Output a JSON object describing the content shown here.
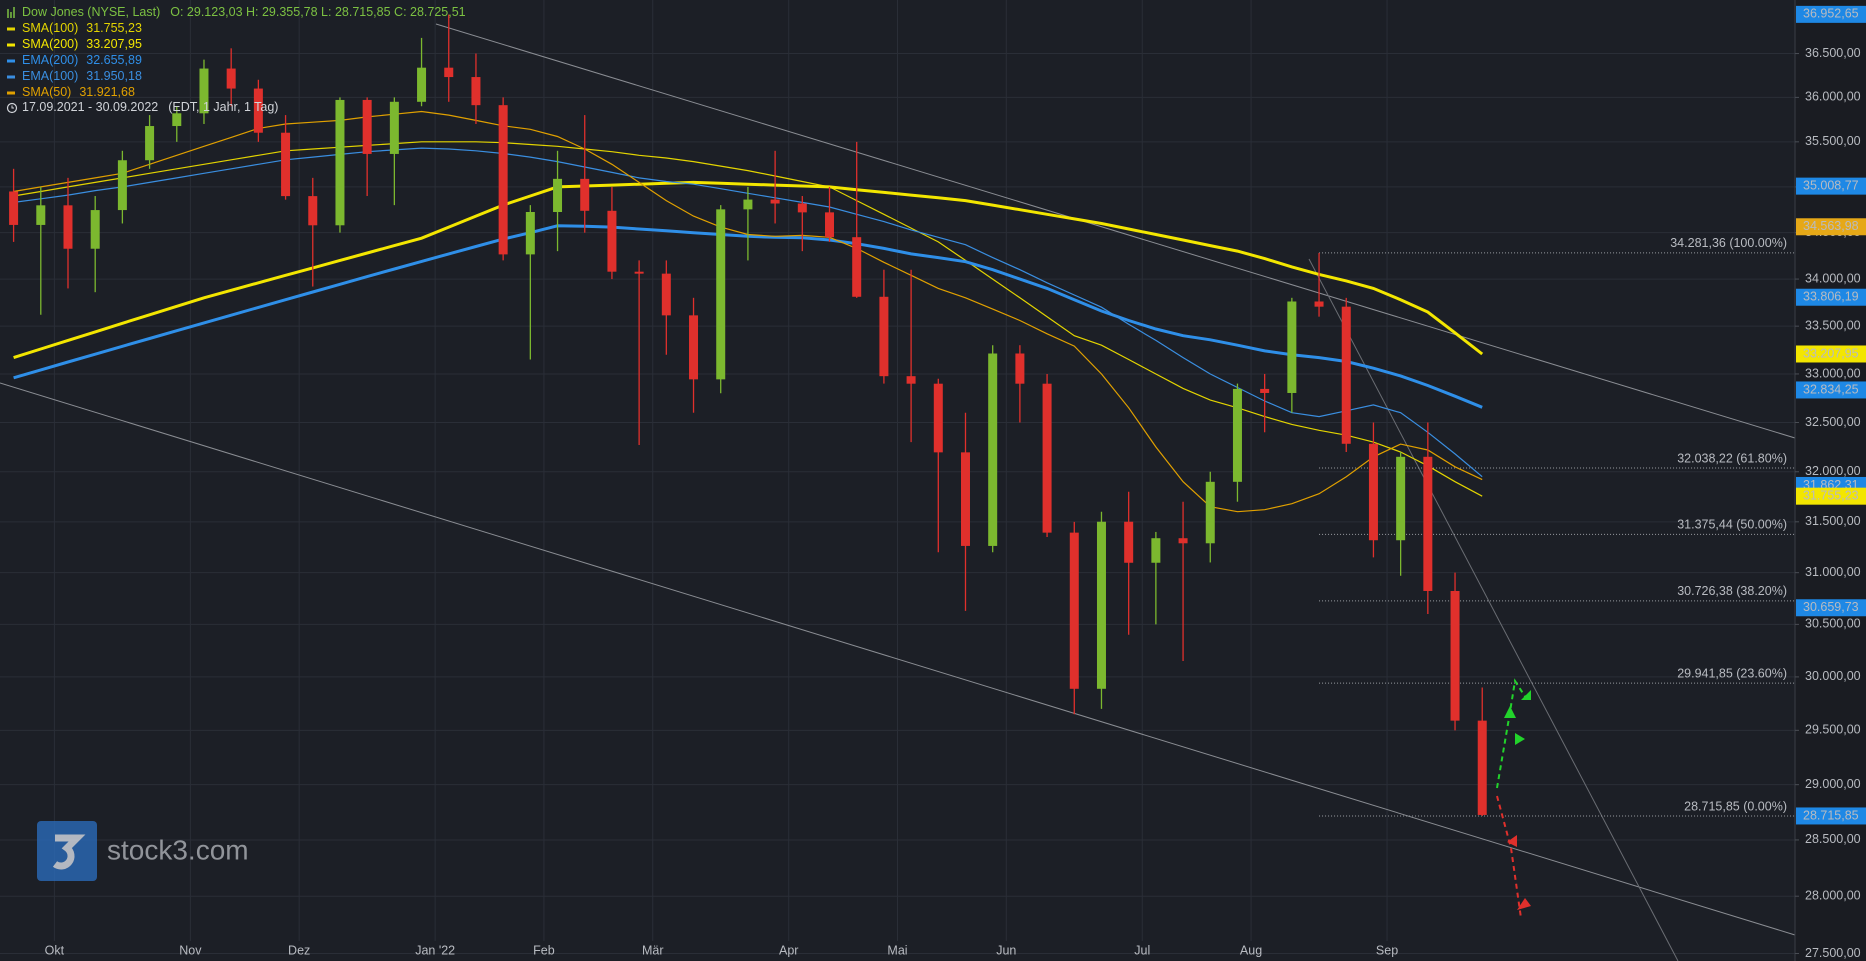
{
  "chart_data": {
    "type": "candlestick",
    "header": {
      "symbol": "Dow Jones (NYSE, Last)",
      "quote": "O: 29.123,03   H: 29.355,78   L: 28.715,85   C: 28.725,51",
      "period": "17.09.2021 - 30.09.2022",
      "period_note": "(EDT, 1 Jahr, 1 Tag)"
    },
    "watermark": "stock3.com",
    "categories": [
      null,
      null,
      "Okt",
      null,
      null,
      null,
      null,
      "Nov",
      null,
      null,
      null,
      "Dez",
      null,
      null,
      null,
      null,
      "Jan '22",
      null,
      null,
      null,
      "Feb",
      null,
      null,
      null,
      "Mär",
      null,
      null,
      null,
      null,
      "Apr",
      null,
      null,
      null,
      "Mai",
      null,
      null,
      null,
      "Jun",
      null,
      null,
      null,
      null,
      "Jul",
      null,
      null,
      null,
      "Aug",
      null,
      null,
      null,
      null,
      "Sep",
      null,
      null,
      null
    ],
    "open": [
      34950,
      34584,
      34798,
      34326,
      34746,
      35295,
      35677,
      35820,
      36328,
      36100,
      35602,
      34899,
      34580,
      35971,
      35365,
      35950,
      36338,
      36231,
      35912,
      34265,
      34725,
      35089,
      34738,
      34079,
      34058,
      33614,
      32944,
      34754,
      34861,
      34818,
      34721,
      34451,
      33811,
      32977,
      32899,
      32196,
      31262,
      33213,
      32899,
      31393,
      29888,
      31501,
      31097,
      31338,
      31288,
      31899,
      32845,
      32803,
      33761,
      33706,
      32283,
      31318,
      32151,
      30822,
      29590
    ],
    "high": [
      35200,
      35000,
      35100,
      34900,
      35400,
      35800,
      35900,
      36430,
      36560,
      36200,
      35800,
      35100,
      36000,
      36000,
      36000,
      36680,
      36950,
      36500,
      36000,
      34800,
      35400,
      35800,
      35000,
      34200,
      34200,
      33800,
      34800,
      35000,
      35400,
      34900,
      35000,
      35500,
      34100,
      34100,
      32950,
      32600,
      33300,
      33300,
      33000,
      31500,
      31600,
      31800,
      31400,
      31700,
      32000,
      32900,
      33000,
      33800,
      34281,
      33800,
      32500,
      32200,
      32500,
      31000,
      29900
    ],
    "low": [
      34400,
      33620,
      33900,
      33860,
      34600,
      35200,
      35500,
      35700,
      35900,
      35500,
      34860,
      33920,
      34500,
      34900,
      34800,
      35900,
      35950,
      35700,
      34200,
      33150,
      34300,
      34500,
      34000,
      32270,
      33200,
      32600,
      32800,
      34200,
      34600,
      34300,
      34400,
      33800,
      32900,
      32300,
      31200,
      30630,
      31200,
      32500,
      31350,
      29650,
      29700,
      30400,
      30500,
      30150,
      31100,
      31700,
      32400,
      32600,
      33600,
      32200,
      31150,
      30970,
      30600,
      29500,
      28715
    ],
    "close": [
      34584,
      34798,
      34326,
      34746,
      35295,
      35677,
      35820,
      36328,
      36100,
      35602,
      34899,
      34580,
      35971,
      35365,
      35950,
      36338,
      36231,
      35912,
      34265,
      34725,
      35089,
      34738,
      34079,
      34058,
      33614,
      32944,
      34754,
      34861,
      34818,
      34721,
      34451,
      33811,
      32977,
      32899,
      32196,
      31262,
      33213,
      32899,
      31393,
      29888,
      31501,
      31097,
      31338,
      31288,
      31899,
      32845,
      32803,
      33761,
      33706,
      32283,
      31318,
      32151,
      30822,
      29590,
      28725
    ],
    "up_color": "#7cb82f",
    "down_color": "#e0302c",
    "series": [
      {
        "name": "SMA(100)",
        "last_label": "31.755,23",
        "color": "#e3d400",
        "width": 1.2,
        "values": [
          34900,
          34950,
          35000,
          35050,
          35100,
          35150,
          35200,
          35250,
          35300,
          35350,
          35400,
          35420,
          35440,
          35460,
          35480,
          35500,
          35500,
          35500,
          35490,
          35470,
          35450,
          35420,
          35390,
          35350,
          35320,
          35280,
          35230,
          35180,
          35120,
          35060,
          35000,
          34850,
          34700,
          34550,
          34400,
          34200,
          34000,
          33800,
          33600,
          33400,
          33300,
          33150,
          33000,
          32850,
          32730,
          32650,
          32560,
          32480,
          32420,
          32370,
          32300,
          32200,
          32060,
          31900,
          31755
        ]
      },
      {
        "name": "SMA(200)",
        "last_label": "33.207,95",
        "color": "#f3e600",
        "width": 3,
        "values": [
          33170,
          33260,
          33350,
          33440,
          33530,
          33620,
          33710,
          33800,
          33880,
          33960,
          34040,
          34120,
          34200,
          34280,
          34360,
          34440,
          34560,
          34680,
          34800,
          34900,
          35000,
          35010,
          35020,
          35030,
          35040,
          35050,
          35040,
          35030,
          35020,
          35010,
          35000,
          34970,
          34940,
          34910,
          34880,
          34850,
          34800,
          34750,
          34700,
          34650,
          34600,
          34540,
          34480,
          34420,
          34360,
          34300,
          34220,
          34130,
          34050,
          33980,
          33900,
          33780,
          33650,
          33430,
          33208
        ]
      },
      {
        "name": "EMA(200)",
        "last_label": "32.655,89",
        "color": "#2f8fe8",
        "width": 3,
        "values": [
          32960,
          33042,
          33124,
          33206,
          33288,
          33370,
          33452,
          33534,
          33616,
          33698,
          33780,
          33862,
          33944,
          34026,
          34108,
          34190,
          34270,
          34350,
          34430,
          34500,
          34575,
          34570,
          34560,
          34540,
          34520,
          34500,
          34480,
          34460,
          34450,
          34444,
          34420,
          34380,
          34330,
          34270,
          34230,
          34186,
          34100,
          34000,
          33900,
          33780,
          33660,
          33560,
          33470,
          33400,
          33357,
          33300,
          33240,
          33200,
          33170,
          33130,
          33060,
          32980,
          32880,
          32770,
          32656
        ]
      },
      {
        "name": "EMA(100)",
        "last_label": "31.950,18",
        "color": "#3a8ee0",
        "width": 1.2,
        "values": [
          34830,
          34870,
          34910,
          34960,
          35000,
          35050,
          35100,
          35150,
          35200,
          35250,
          35300,
          35330,
          35360,
          35390,
          35410,
          35430,
          35420,
          35400,
          35370,
          35330,
          35280,
          35220,
          35160,
          35100,
          35060,
          35030,
          34980,
          34930,
          34880,
          34830,
          34780,
          34700,
          34620,
          34530,
          34450,
          34370,
          34230,
          34100,
          33960,
          33830,
          33700,
          33520,
          33350,
          33170,
          33000,
          32860,
          32720,
          32600,
          32560,
          32620,
          32680,
          32600,
          32400,
          32180,
          31950
        ]
      },
      {
        "name": "SMA(50)",
        "last_label": "31.921,68",
        "color": "#e0a000",
        "width": 1.2,
        "values": [
          34950,
          35000,
          35050,
          35100,
          35150,
          35250,
          35350,
          35450,
          35550,
          35650,
          35700,
          35720,
          35740,
          35780,
          35810,
          35840,
          35800,
          35740,
          35680,
          35640,
          35560,
          35420,
          35250,
          35050,
          34850,
          34680,
          34560,
          34480,
          34460,
          34470,
          34450,
          34330,
          34180,
          34040,
          33900,
          33800,
          33680,
          33560,
          33420,
          33290,
          33000,
          32650,
          32250,
          31900,
          31650,
          31600,
          31620,
          31680,
          31780,
          31950,
          32150,
          32280,
          32220,
          32050,
          31921
        ]
      }
    ],
    "log_y": true,
    "ylim": [
      27435,
      37120
    ],
    "yticks": [
      {
        "value": 27500,
        "label": "27.500,00"
      },
      {
        "value": 28000,
        "label": "28.000,00"
      },
      {
        "value": 28500,
        "label": "28.500,00"
      },
      {
        "value": 29000,
        "label": "29.000,00"
      },
      {
        "value": 29500,
        "label": "29.500,00"
      },
      {
        "value": 30000,
        "label": "30.000,00"
      },
      {
        "value": 30500,
        "label": "30.500,00"
      },
      {
        "value": 31000,
        "label": "31.000,00"
      },
      {
        "value": 31500,
        "label": "31.500,00"
      },
      {
        "value": 32000,
        "label": "32.000,00"
      },
      {
        "value": 32500,
        "label": "32.500,00"
      },
      {
        "value": 33000,
        "label": "33.000,00"
      },
      {
        "value": 33500,
        "label": "33.500,00"
      },
      {
        "value": 34000,
        "label": "34.000,00"
      },
      {
        "value": 34500,
        "label": "34.500,00"
      },
      {
        "value": 35000,
        "label": "35.000,00"
      },
      {
        "value": 35500,
        "label": "35.500,00"
      },
      {
        "value": 36000,
        "label": "36.000,00"
      },
      {
        "value": 36500,
        "label": "36.500,00"
      }
    ],
    "grid": true,
    "fib_start": 48,
    "fib_levels": [
      {
        "value": 34281.36,
        "label": "34.281,36 (100.00%)"
      },
      {
        "value": 32038.22,
        "label": "32.038,22 (61.80%)"
      },
      {
        "value": 31375.44,
        "label": "31.375,44 (50.00%)"
      },
      {
        "value": 30726.38,
        "label": "30.726,38 (38.20%)"
      },
      {
        "value": 29941.85,
        "label": "29.941,85 (23.60%)"
      },
      {
        "value": 28715.85,
        "label": "28.715,85 (0.00%)"
      }
    ],
    "price_tags": [
      {
        "value": 36952.65,
        "label": "36.952,65",
        "color": "#1e88e5"
      },
      {
        "value": 35008.77,
        "label": "35.008,77",
        "color": "#1e88e5"
      },
      {
        "value": 34563.98,
        "label": "34.563,98",
        "color": "#e6a817"
      },
      {
        "value": 33806.19,
        "label": "33.806,19",
        "color": "#1e88e5"
      },
      {
        "value": 33207.95,
        "label": "33.207,95",
        "color": "#f3e600"
      },
      {
        "value": 32834.25,
        "label": "32.834,25",
        "color": "#1e88e5"
      },
      {
        "value": 31862.31,
        "label": "31.862,31",
        "color": "#1e88e5"
      },
      {
        "value": 31755.23,
        "label": "31.755,23",
        "color": "#f3e600"
      },
      {
        "value": 30659.73,
        "label": "30.659,73",
        "color": "#1e88e5"
      },
      {
        "value": 28715.85,
        "label": "28.715,85",
        "color": "#1e88e5"
      }
    ]
  }
}
